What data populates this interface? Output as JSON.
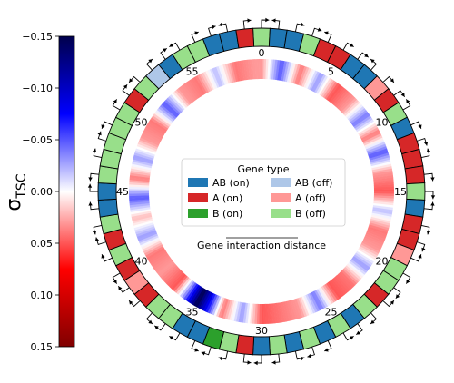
{
  "chart_data": {
    "type": "circular-genome",
    "colorbar": {
      "label": "σ",
      "label_sub": "TSC",
      "ticks": [
        "−0.15",
        "−0.10",
        "−0.05",
        "0.00",
        "0.05",
        "0.10",
        "0.15"
      ],
      "tick_values": [
        -0.15,
        -0.1,
        -0.05,
        0.0,
        0.05,
        0.1,
        0.15
      ],
      "range": [
        -0.15,
        0.15
      ],
      "colormap": "seismic_r"
    },
    "position_labels": [
      "0",
      "5",
      "10",
      "15",
      "20",
      "25",
      "30",
      "35",
      "40",
      "45",
      "50",
      "55"
    ],
    "position_values": [
      0,
      5,
      10,
      15,
      20,
      25,
      30,
      35,
      40,
      45,
      50,
      55
    ],
    "n_positions": 60,
    "genes": {
      "AB_on": [
        1,
        2,
        6,
        7,
        11,
        16,
        24,
        26,
        28,
        30,
        34,
        35,
        44,
        45,
        54,
        57,
        58
      ],
      "AB_off": [
        53
      ],
      "A_on": [
        4,
        5,
        9,
        12,
        13,
        14,
        17,
        18,
        22,
        31,
        38,
        40,
        42,
        51,
        59
      ],
      "A_off": [
        8,
        19,
        39
      ],
      "B_on": [
        33
      ],
      "B_off": [
        0,
        3,
        10,
        15,
        20,
        21,
        23,
        25,
        27,
        29,
        32,
        36,
        37,
        41,
        43,
        46,
        47,
        48,
        49,
        50,
        52,
        55,
        56
      ],
      "colors": {
        "AB_on": "#1f77b4",
        "AB_off": "#aec7e8",
        "A_on": "#d62728",
        "A_off": "#ff9896",
        "B_on": "#2ca02c",
        "B_off": "#98df8a"
      }
    },
    "sigma_profile": {
      "positions": [
        0,
        1.5,
        3,
        4.5,
        6,
        7.5,
        9,
        10.5,
        12,
        13.5,
        15,
        16.5,
        18,
        19.5,
        21,
        22.5,
        24,
        25.5,
        27,
        28.5,
        30,
        31.5,
        33,
        34,
        35,
        36,
        37,
        38.5,
        40,
        41.5,
        43,
        44.5,
        46,
        47.5,
        49,
        50.5,
        52,
        53.5,
        55,
        56.5,
        58,
        59.5
      ],
      "values": [
        0.03,
        -0.05,
        0.04,
        -0.03,
        0.05,
        0.03,
        -0.04,
        0.04,
        -0.05,
        0.03,
        0.05,
        -0.02,
        0.04,
        0.03,
        -0.03,
        0.04,
        0.05,
        -0.04,
        0.03,
        0.04,
        0.05,
        -0.03,
        0.04,
        -0.06,
        -0.15,
        -0.04,
        0.05,
        0.03,
        0.04,
        -0.03,
        0.02,
        -0.05,
        0.04,
        -0.03,
        0.03,
        0.04,
        -0.05,
        0.03,
        0.04,
        -0.02,
        0.04,
        0.03
      ]
    },
    "legend": {
      "title": "Gene type",
      "entries": [
        {
          "label": "AB (on)",
          "key": "AB_on"
        },
        {
          "label": "AB (off)",
          "key": "AB_off"
        },
        {
          "label": "A (on)",
          "key": "A_on"
        },
        {
          "label": "A (off)",
          "key": "A_off"
        },
        {
          "label": "B (on)",
          "key": "B_on"
        },
        {
          "label": "B (off)",
          "key": "B_off"
        }
      ],
      "scale_label": "Gene interaction distance"
    }
  }
}
